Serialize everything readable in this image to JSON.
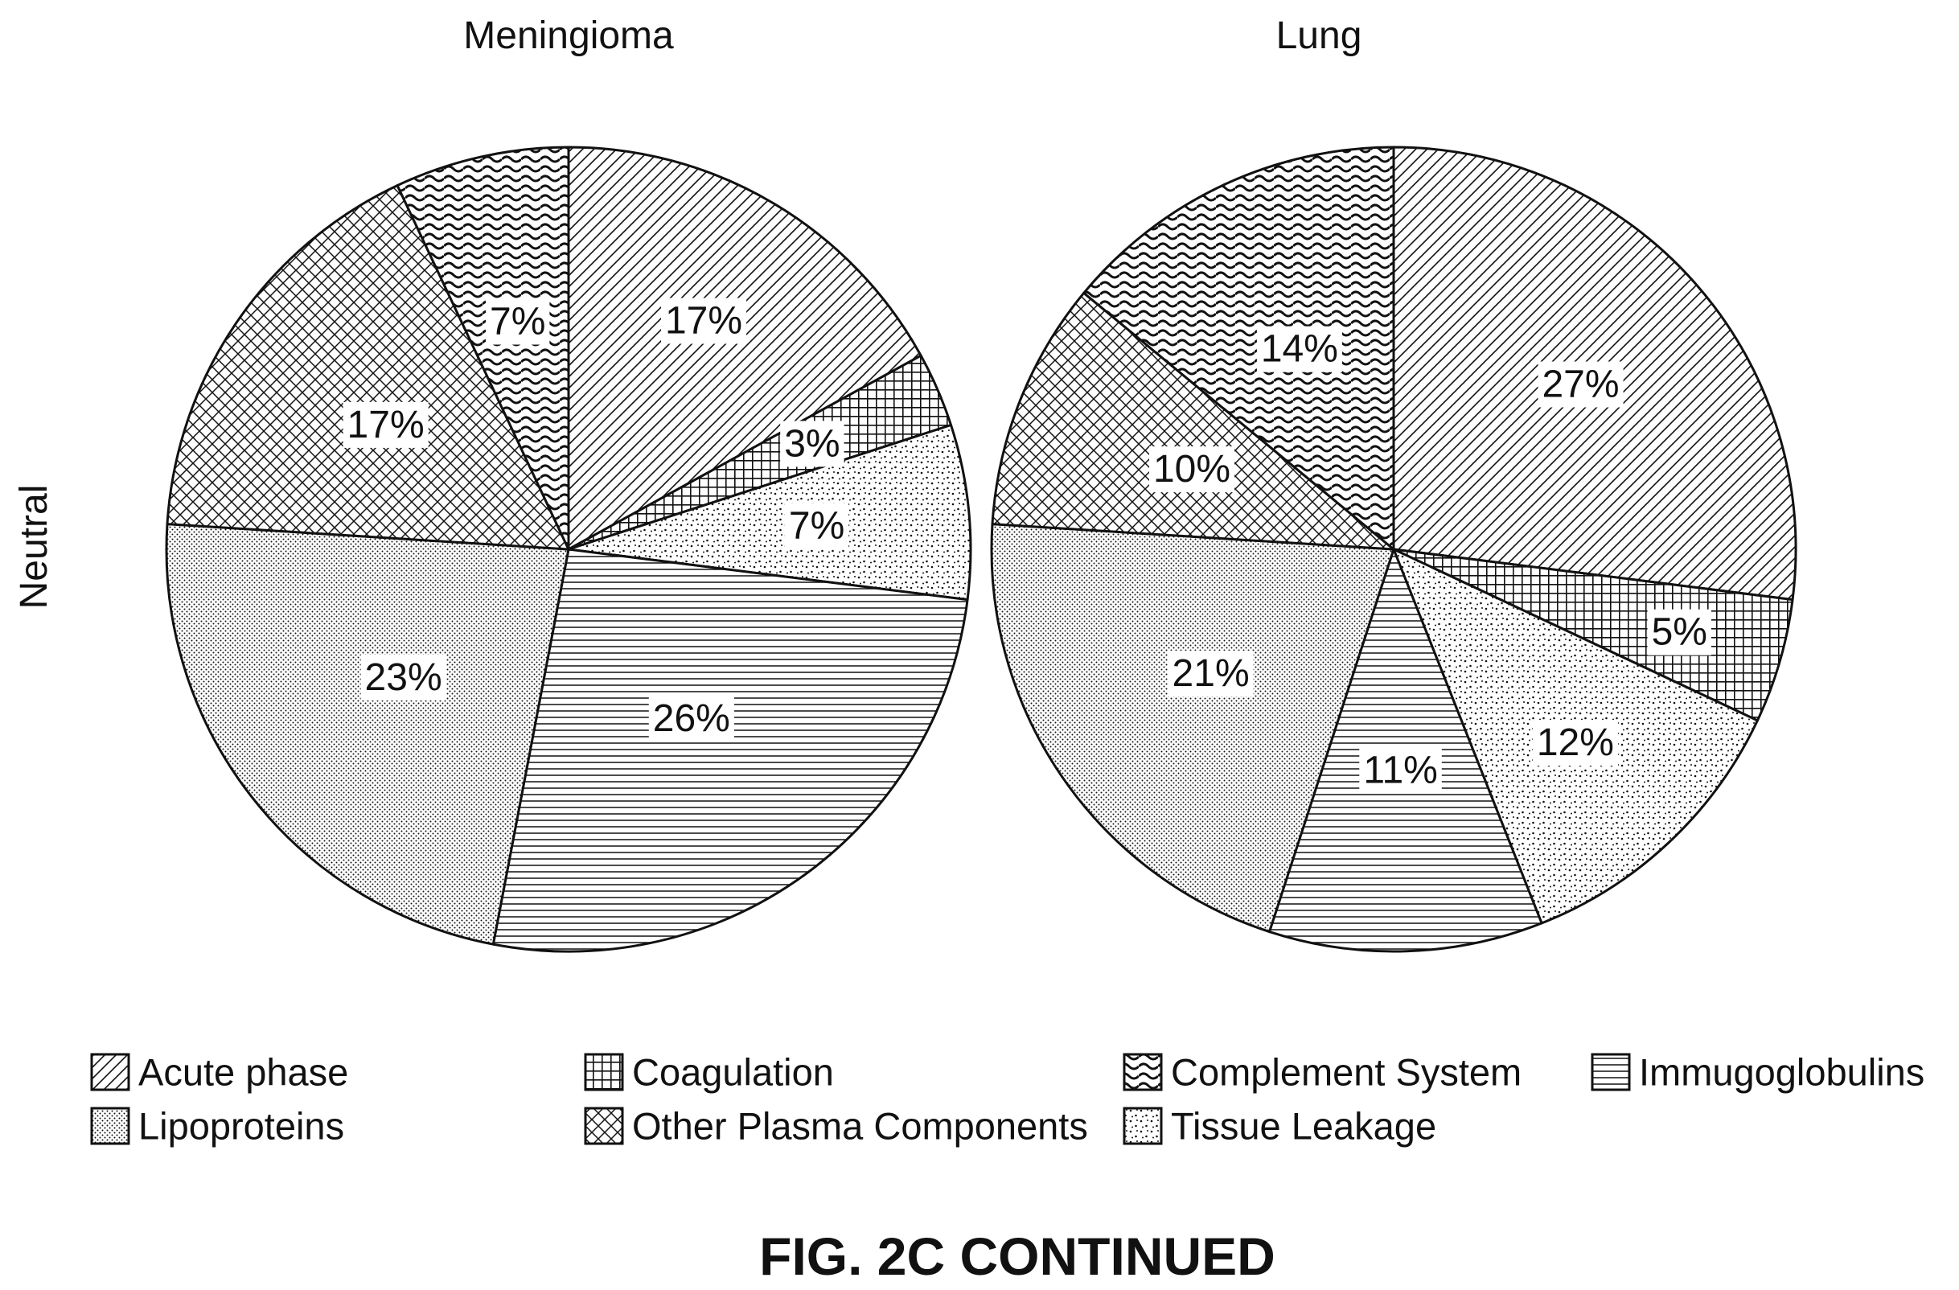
{
  "figure_caption": "FIG. 2C CONTINUED",
  "row_label": "Neutral",
  "colors": {
    "ink": "#111111",
    "background": "#ffffff"
  },
  "legend": [
    {
      "label": "Acute phase",
      "pattern": "diagonal-hatch"
    },
    {
      "label": "Coagulation",
      "pattern": "square-grid"
    },
    {
      "label": "Complement System",
      "pattern": "wavy-lines"
    },
    {
      "label": "Immugoglobulins",
      "pattern": "horizontal-lines"
    },
    {
      "label": "Lipoproteins",
      "pattern": "dense-dots"
    },
    {
      "label": "Other Plasma Components",
      "pattern": "cross-hatch"
    },
    {
      "label": "Tissue Leakage",
      "pattern": "sparse-dots"
    }
  ],
  "chart_data": [
    {
      "type": "pie",
      "title": "Meningioma",
      "unit": "%",
      "slices": [
        {
          "category": "Acute phase",
          "value": 17,
          "label": "17%"
        },
        {
          "category": "Coagulation",
          "value": 3,
          "label": "3%"
        },
        {
          "category": "Tissue Leakage",
          "value": 7,
          "label": "7%"
        },
        {
          "category": "Immugoglobulins",
          "value": 26,
          "label": "26%"
        },
        {
          "category": "Lipoproteins",
          "value": 23,
          "label": "23%"
        },
        {
          "category": "Other Plasma Components",
          "value": 17,
          "label": "17%"
        },
        {
          "category": "Complement System",
          "value": 7,
          "label": "7%"
        }
      ]
    },
    {
      "type": "pie",
      "title": "Lung",
      "unit": "%",
      "slices": [
        {
          "category": "Acute phase",
          "value": 27,
          "label": "27%"
        },
        {
          "category": "Coagulation",
          "value": 5,
          "label": "5%"
        },
        {
          "category": "Tissue Leakage",
          "value": 12,
          "label": "12%"
        },
        {
          "category": "Immugoglobulins",
          "value": 11,
          "label": "11%"
        },
        {
          "category": "Lipoproteins",
          "value": 21,
          "label": "21%"
        },
        {
          "category": "Other Plasma Components",
          "value": 10,
          "label": "10%"
        },
        {
          "category": "Complement System",
          "value": 14,
          "label": "14%"
        }
      ]
    }
  ]
}
